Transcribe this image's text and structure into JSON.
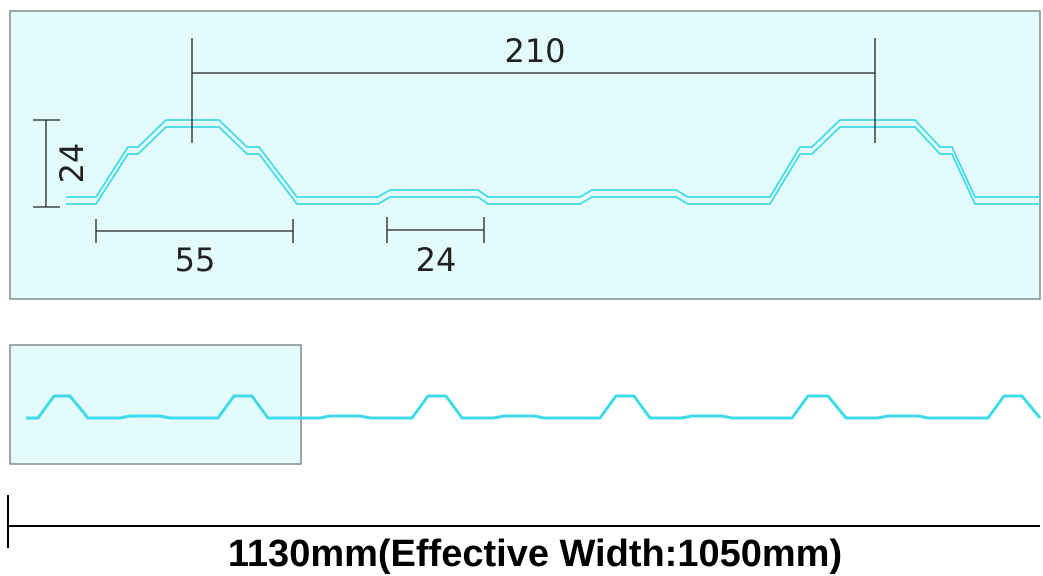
{
  "colors": {
    "panel_fill": "#e3fbfb",
    "panel_border": "#7f8c8c",
    "profile_stroke": "#3fdbe6",
    "dimension_line": "#222222",
    "footer_text": "#000000"
  },
  "detail_view": {
    "dimensions": {
      "pitch": "210",
      "height": "24",
      "top_width": "55",
      "rib_width": "24"
    }
  },
  "overview": {
    "highlight": "detail-region"
  },
  "footer": {
    "width_label": "1130mm(Effective Width:1050mm)"
  }
}
